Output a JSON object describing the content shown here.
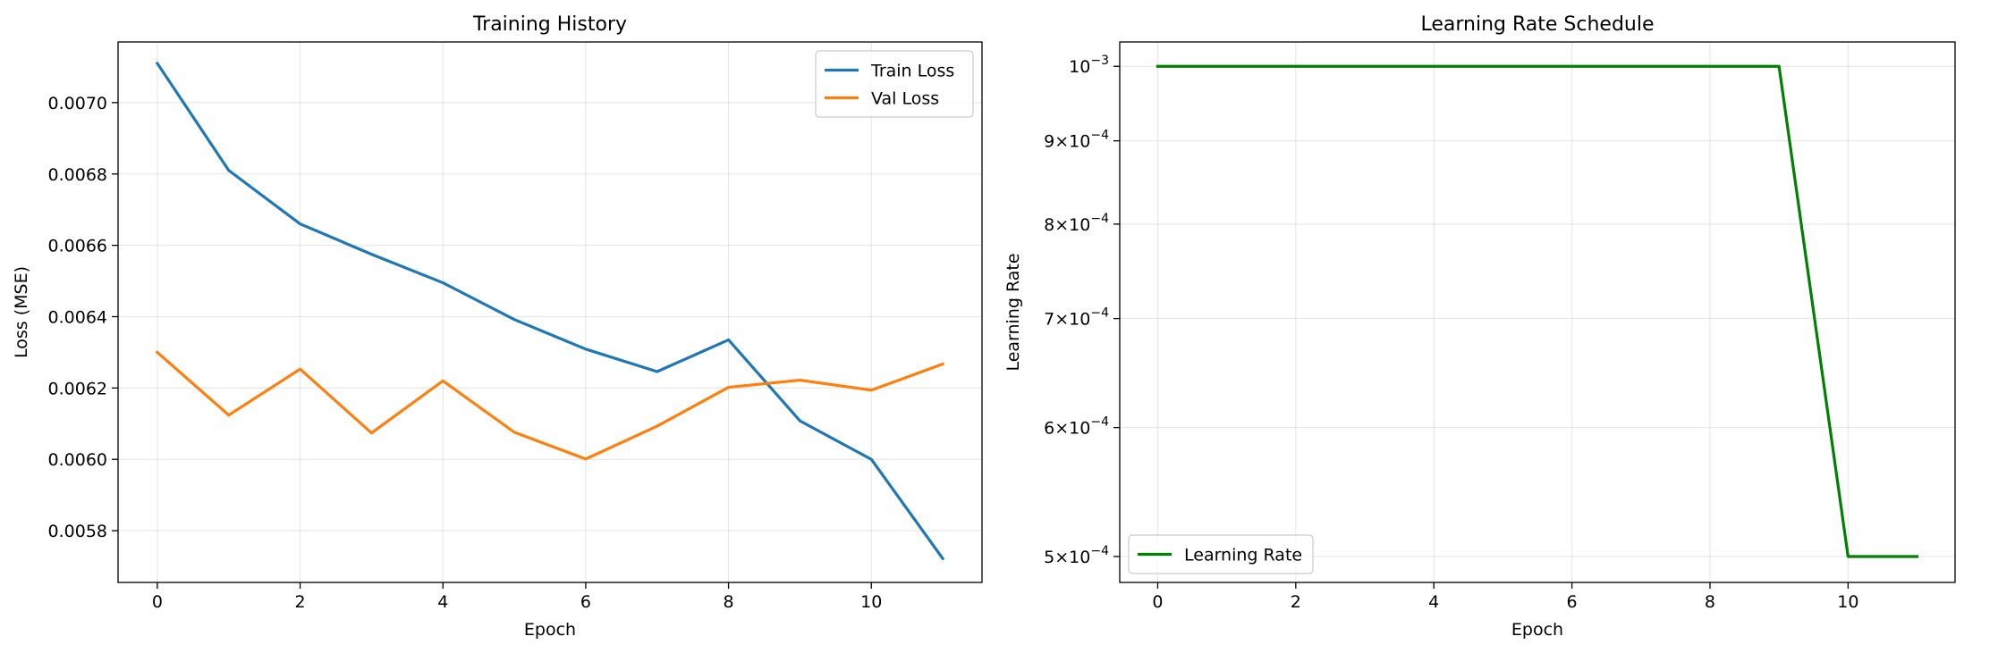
{
  "chart_data": [
    {
      "type": "line",
      "title": "Training History",
      "xlabel": "Epoch",
      "ylabel": "Loss (MSE)",
      "x": [
        0,
        1,
        2,
        3,
        4,
        5,
        6,
        7,
        8,
        9,
        10,
        11
      ],
      "xlim": [
        -0.55,
        11.55
      ],
      "ylim": [
        0.005655,
        0.00717
      ],
      "xticks": [
        0,
        2,
        4,
        6,
        8,
        10
      ],
      "xtick_labels": [
        "0",
        "2",
        "4",
        "6",
        "8",
        "10"
      ],
      "yticks": [
        0.0058,
        0.006,
        0.0062,
        0.0064,
        0.0066,
        0.0068,
        0.007
      ],
      "ytick_labels": [
        "0.0058",
        "0.0060",
        "0.0062",
        "0.0064",
        "0.0066",
        "0.0068",
        "0.0070"
      ],
      "yscale": "linear",
      "grid": true,
      "legend_position": "upper right",
      "series": [
        {
          "name": "Train Loss",
          "color": "#1f77b4",
          "values": [
            0.00711,
            0.00681,
            0.00666,
            0.006575,
            0.006495,
            0.006392,
            0.006309,
            0.006246,
            0.006335,
            0.006108,
            0.006,
            0.005722
          ]
        },
        {
          "name": "Val Loss",
          "color": "#ff7f0e",
          "values": [
            0.0063,
            0.006124,
            0.006253,
            0.006074,
            0.00622,
            0.006076,
            0.006001,
            0.006093,
            0.006202,
            0.006222,
            0.006194,
            0.006267
          ]
        }
      ]
    },
    {
      "type": "line",
      "title": "Learning Rate Schedule",
      "xlabel": "Epoch",
      "ylabel": "Learning Rate",
      "x": [
        0,
        1,
        2,
        3,
        4,
        5,
        6,
        7,
        8,
        9,
        10,
        11
      ],
      "xlim": [
        -0.55,
        11.55
      ],
      "ylim": [
        0.000482,
        0.001035
      ],
      "xticks": [
        0,
        2,
        4,
        6,
        8,
        10
      ],
      "xtick_labels": [
        "0",
        "2",
        "4",
        "6",
        "8",
        "10"
      ],
      "yticks": [
        0.0005,
        0.0006,
        0.0007,
        0.0008,
        0.0009,
        0.001
      ],
      "ytick_labels": [
        {
          "mantissa": "5",
          "exponent": "−4"
        },
        {
          "mantissa": "6",
          "exponent": "−4"
        },
        {
          "mantissa": "7",
          "exponent": "−4"
        },
        {
          "mantissa": "8",
          "exponent": "−4"
        },
        {
          "mantissa": "9",
          "exponent": "−4"
        },
        {
          "mantissa": "",
          "exponent": "−3"
        }
      ],
      "yscale": "log",
      "grid": true,
      "legend_position": "lower left",
      "series": [
        {
          "name": "Learning Rate",
          "color": "#008000",
          "values": [
            0.001,
            0.001,
            0.001,
            0.001,
            0.001,
            0.001,
            0.001,
            0.001,
            0.001,
            0.001,
            0.0005,
            0.0005
          ]
        }
      ]
    }
  ]
}
